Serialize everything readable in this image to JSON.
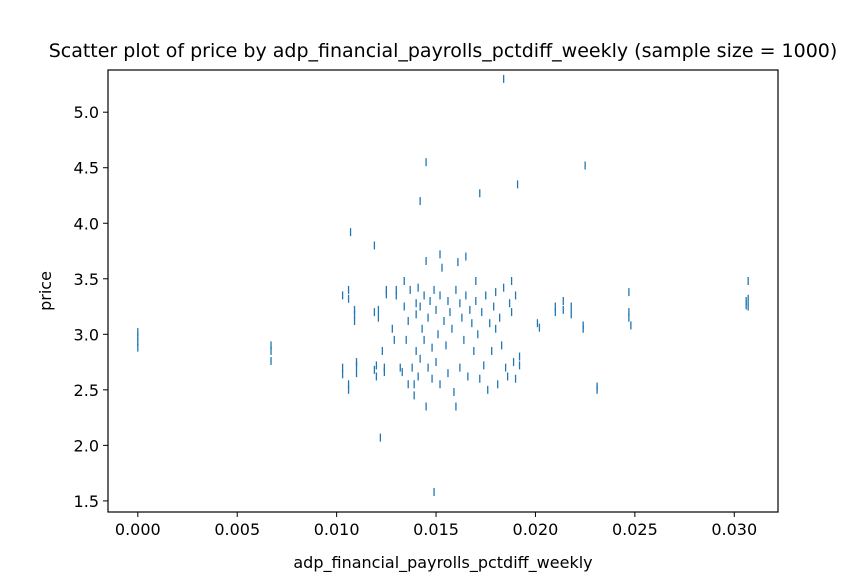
{
  "chart_data": {
    "type": "scatter",
    "title": "Scatter plot of price by adp_financial_payrolls_pctdiff_weekly (sample size = 1000)",
    "xlabel": "adp_financial_payrolls_pctdiff_weekly",
    "ylabel": "price",
    "xlim": [
      -0.0015,
      0.0322
    ],
    "ylim": [
      1.4,
      5.38
    ],
    "xticks": [
      {
        "value": 0.0,
        "label": "0.000"
      },
      {
        "value": 0.005,
        "label": "0.005"
      },
      {
        "value": 0.01,
        "label": "0.010"
      },
      {
        "value": 0.015,
        "label": "0.015"
      },
      {
        "value": 0.02,
        "label": "0.020"
      },
      {
        "value": 0.025,
        "label": "0.025"
      },
      {
        "value": 0.03,
        "label": "0.030"
      }
    ],
    "yticks": [
      {
        "value": 1.5,
        "label": "1.5"
      },
      {
        "value": 2.0,
        "label": "2.0"
      },
      {
        "value": 2.5,
        "label": "2.5"
      },
      {
        "value": 3.0,
        "label": "3.0"
      },
      {
        "value": 3.5,
        "label": "3.5"
      },
      {
        "value": 4.0,
        "label": "4.0"
      },
      {
        "value": 4.5,
        "label": "4.5"
      },
      {
        "value": 5.0,
        "label": "5.0"
      }
    ],
    "grid": false,
    "marker_color": "#1f77b4",
    "points": [
      [
        0.0,
        2.88
      ],
      [
        0.0,
        2.93
      ],
      [
        0.0,
        2.98
      ],
      [
        0.0,
        3.02
      ],
      [
        0.0067,
        2.76
      ],
      [
        0.0067,
        2.85
      ],
      [
        0.0067,
        2.9
      ],
      [
        0.0103,
        3.35
      ],
      [
        0.0103,
        2.7
      ],
      [
        0.0103,
        2.64
      ],
      [
        0.0106,
        2.5
      ],
      [
        0.0106,
        2.55
      ],
      [
        0.0106,
        3.4
      ],
      [
        0.0106,
        3.32
      ],
      [
        0.0107,
        3.92
      ],
      [
        0.0109,
        3.18
      ],
      [
        0.0109,
        3.22
      ],
      [
        0.0109,
        3.12
      ],
      [
        0.011,
        2.72
      ],
      [
        0.011,
        2.65
      ],
      [
        0.011,
        2.75
      ],
      [
        0.0119,
        3.8
      ],
      [
        0.0119,
        3.2
      ],
      [
        0.0119,
        2.68
      ],
      [
        0.012,
        2.72
      ],
      [
        0.012,
        2.62
      ],
      [
        0.0121,
        3.15
      ],
      [
        0.0121,
        3.22
      ],
      [
        0.0122,
        2.07
      ],
      [
        0.0123,
        2.85
      ],
      [
        0.0124,
        2.7
      ],
      [
        0.0124,
        2.66
      ],
      [
        0.0125,
        3.4
      ],
      [
        0.0125,
        3.36
      ],
      [
        0.0128,
        3.05
      ],
      [
        0.0129,
        2.95
      ],
      [
        0.013,
        3.35
      ],
      [
        0.013,
        3.4
      ],
      [
        0.0132,
        2.7
      ],
      [
        0.0133,
        2.66
      ],
      [
        0.0134,
        3.48
      ],
      [
        0.0134,
        3.25
      ],
      [
        0.0135,
        2.95
      ],
      [
        0.0136,
        3.12
      ],
      [
        0.0136,
        2.55
      ],
      [
        0.0137,
        3.4
      ],
      [
        0.0138,
        2.7
      ],
      [
        0.0139,
        2.55
      ],
      [
        0.0139,
        2.45
      ],
      [
        0.014,
        3.28
      ],
      [
        0.014,
        3.18
      ],
      [
        0.014,
        2.85
      ],
      [
        0.0141,
        3.42
      ],
      [
        0.0141,
        2.62
      ],
      [
        0.0142,
        4.2
      ],
      [
        0.0142,
        3.25
      ],
      [
        0.0142,
        2.78
      ],
      [
        0.0143,
        3.05
      ],
      [
        0.0144,
        3.35
      ],
      [
        0.0144,
        2.95
      ],
      [
        0.0145,
        4.55
      ],
      [
        0.0145,
        3.66
      ],
      [
        0.0145,
        2.35
      ],
      [
        0.0146,
        3.15
      ],
      [
        0.0146,
        2.7
      ],
      [
        0.0147,
        3.3
      ],
      [
        0.0148,
        2.88
      ],
      [
        0.0148,
        2.6
      ],
      [
        0.0149,
        3.4
      ],
      [
        0.0149,
        1.58
      ],
      [
        0.015,
        3.22
      ],
      [
        0.015,
        2.75
      ],
      [
        0.0151,
        3.0
      ],
      [
        0.0152,
        3.72
      ],
      [
        0.0152,
        3.35
      ],
      [
        0.0152,
        2.55
      ],
      [
        0.0153,
        3.6
      ],
      [
        0.0154,
        3.12
      ],
      [
        0.0155,
        2.9
      ],
      [
        0.0156,
        3.3
      ],
      [
        0.0156,
        2.65
      ],
      [
        0.0157,
        3.2
      ],
      [
        0.0158,
        3.05
      ],
      [
        0.0159,
        2.48
      ],
      [
        0.016,
        3.4
      ],
      [
        0.016,
        2.35
      ],
      [
        0.0161,
        3.65
      ],
      [
        0.0162,
        3.28
      ],
      [
        0.0162,
        2.7
      ],
      [
        0.0163,
        3.15
      ],
      [
        0.0164,
        2.95
      ],
      [
        0.0165,
        3.7
      ],
      [
        0.0165,
        3.35
      ],
      [
        0.0166,
        2.62
      ],
      [
        0.0167,
        3.22
      ],
      [
        0.0168,
        3.1
      ],
      [
        0.0169,
        2.85
      ],
      [
        0.017,
        3.48
      ],
      [
        0.017,
        3.3
      ],
      [
        0.0171,
        3.0
      ],
      [
        0.0172,
        4.27
      ],
      [
        0.0172,
        2.6
      ],
      [
        0.0173,
        3.2
      ],
      [
        0.0174,
        2.72
      ],
      [
        0.0175,
        3.35
      ],
      [
        0.0176,
        2.5
      ],
      [
        0.0177,
        3.1
      ],
      [
        0.0178,
        2.85
      ],
      [
        0.0179,
        3.25
      ],
      [
        0.018,
        3.38
      ],
      [
        0.018,
        3.05
      ],
      [
        0.0181,
        2.55
      ],
      [
        0.0182,
        3.15
      ],
      [
        0.0183,
        2.9
      ],
      [
        0.0184,
        5.3
      ],
      [
        0.0184,
        3.42
      ],
      [
        0.0185,
        2.7
      ],
      [
        0.0186,
        2.62
      ],
      [
        0.0187,
        3.28
      ],
      [
        0.0188,
        3.48
      ],
      [
        0.0188,
        3.2
      ],
      [
        0.0189,
        2.75
      ],
      [
        0.019,
        3.35
      ],
      [
        0.019,
        2.6
      ],
      [
        0.0191,
        4.35
      ],
      [
        0.0192,
        2.72
      ],
      [
        0.0192,
        2.8
      ],
      [
        0.0201,
        3.1
      ],
      [
        0.0202,
        3.06
      ],
      [
        0.021,
        3.25
      ],
      [
        0.021,
        3.2
      ],
      [
        0.0214,
        3.3
      ],
      [
        0.0214,
        3.22
      ],
      [
        0.0218,
        3.25
      ],
      [
        0.0218,
        3.18
      ],
      [
        0.0224,
        3.05
      ],
      [
        0.0224,
        3.08
      ],
      [
        0.0225,
        4.52
      ],
      [
        0.0231,
        2.5
      ],
      [
        0.0231,
        2.53
      ],
      [
        0.0247,
        3.38
      ],
      [
        0.0247,
        3.2
      ],
      [
        0.0247,
        3.15
      ],
      [
        0.0248,
        3.08
      ],
      [
        0.0306,
        3.3
      ],
      [
        0.0306,
        3.26
      ],
      [
        0.0307,
        3.32
      ],
      [
        0.0307,
        3.48
      ],
      [
        0.0307,
        3.25
      ]
    ]
  }
}
